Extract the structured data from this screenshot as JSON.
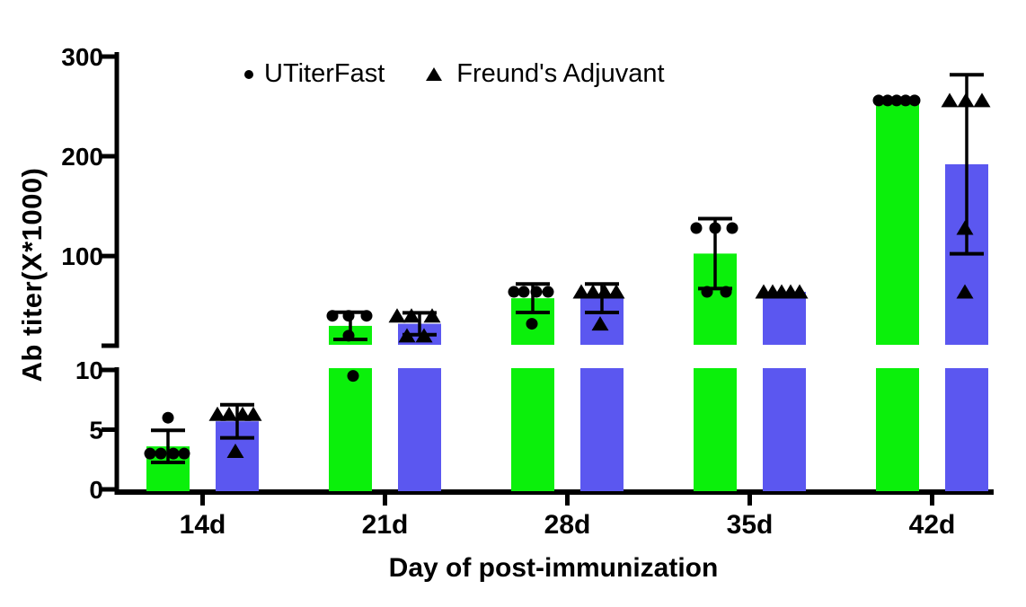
{
  "chart_data": {
    "type": "bar",
    "title": "",
    "xlabel": "Day of post-immunization",
    "ylabel": "Ab titer(X*1000)",
    "categories": [
      "14d",
      "21d",
      "28d",
      "35d",
      "42d"
    ],
    "y_axis": {
      "broken": true,
      "lower_segment": {
        "range": [
          0,
          10
        ],
        "ticks": [
          0,
          5,
          10
        ]
      },
      "upper_segment": {
        "range": [
          10,
          300
        ],
        "ticks": [
          100,
          200,
          300
        ]
      },
      "grid": false
    },
    "legend": [
      {
        "label": "UTiterFast",
        "marker": "circle"
      },
      {
        "label": "Freund's Adjuvant",
        "marker": "triangle"
      }
    ],
    "legend_position": "top",
    "series": [
      {
        "name": "UTiterFast",
        "marker": "circle",
        "bar_color": "#0BF00B",
        "means": [
          3.6,
          29.9,
          57.6,
          102.4,
          256
        ],
        "sd": [
          1.34,
          13.63,
          14.31,
          35.05,
          0
        ],
        "points": [
          [
            {
              "v": 3,
              "dx": -20
            },
            {
              "v": 3,
              "dx": -8
            },
            {
              "v": 3,
              "dx": 6
            },
            {
              "v": 3,
              "dx": 18
            },
            {
              "v": 6,
              "dx": 0
            }
          ],
          [
            {
              "v": 40,
              "dx": -20
            },
            {
              "v": 40,
              "dx": -2
            },
            {
              "v": 40,
              "dx": 18
            },
            {
              "v": 20,
              "dx": -2
            },
            {
              "v": 9.5,
              "dx": 3
            }
          ],
          [
            {
              "v": 64,
              "dx": -21
            },
            {
              "v": 64,
              "dx": -10
            },
            {
              "v": 64,
              "dx": 4
            },
            {
              "v": 64,
              "dx": 17
            },
            {
              "v": 32,
              "dx": -1
            }
          ],
          [
            {
              "v": 128,
              "dx": -21
            },
            {
              "v": 128,
              "dx": 0
            },
            {
              "v": 128,
              "dx": 19
            },
            {
              "v": 64,
              "dx": -9
            },
            {
              "v": 64,
              "dx": 12
            }
          ],
          [
            {
              "v": 256,
              "dx": -21
            },
            {
              "v": 256,
              "dx": -11
            },
            {
              "v": 256,
              "dx": -1
            },
            {
              "v": 256,
              "dx": 9
            },
            {
              "v": 256,
              "dx": 19
            }
          ]
        ]
      },
      {
        "name": "Freund's Adjuvant",
        "marker": "triangle",
        "bar_color": "#5B57F0",
        "means": [
          5.7,
          32,
          57.6,
          64,
          192
        ],
        "sd": [
          1.39,
          10.95,
          14.31,
          0,
          89.8
        ],
        "points": [
          [
            {
              "v": 6.3,
              "dx": -22
            },
            {
              "v": 6.3,
              "dx": -9
            },
            {
              "v": 6.3,
              "dx": 6
            },
            {
              "v": 6.3,
              "dx": 18
            },
            {
              "v": 3.2,
              "dx": -2
            }
          ],
          [
            {
              "v": 40,
              "dx": -25
            },
            {
              "v": 40,
              "dx": -9
            },
            {
              "v": 40,
              "dx": 14
            },
            {
              "v": 20,
              "dx": -14
            },
            {
              "v": 20,
              "dx": 5
            }
          ],
          [
            {
              "v": 64,
              "dx": -23
            },
            {
              "v": 64,
              "dx": -10
            },
            {
              "v": 64,
              "dx": 3
            },
            {
              "v": 64,
              "dx": 16
            },
            {
              "v": 32,
              "dx": -2
            }
          ],
          [
            {
              "v": 64,
              "dx": -23
            },
            {
              "v": 64,
              "dx": -13
            },
            {
              "v": 64,
              "dx": -3
            },
            {
              "v": 64,
              "dx": 7
            },
            {
              "v": 64,
              "dx": 17
            }
          ],
          [
            {
              "v": 256,
              "dx": -19
            },
            {
              "v": 256,
              "dx": -1
            },
            {
              "v": 256,
              "dx": 17
            },
            {
              "v": 128,
              "dx": -2
            },
            {
              "v": 64,
              "dx": -2
            }
          ]
        ]
      }
    ],
    "error_bar_style": "mean ± SD",
    "colors": {
      "axis": "#000000",
      "text": "#000000",
      "background": "#FFFFFF"
    }
  }
}
